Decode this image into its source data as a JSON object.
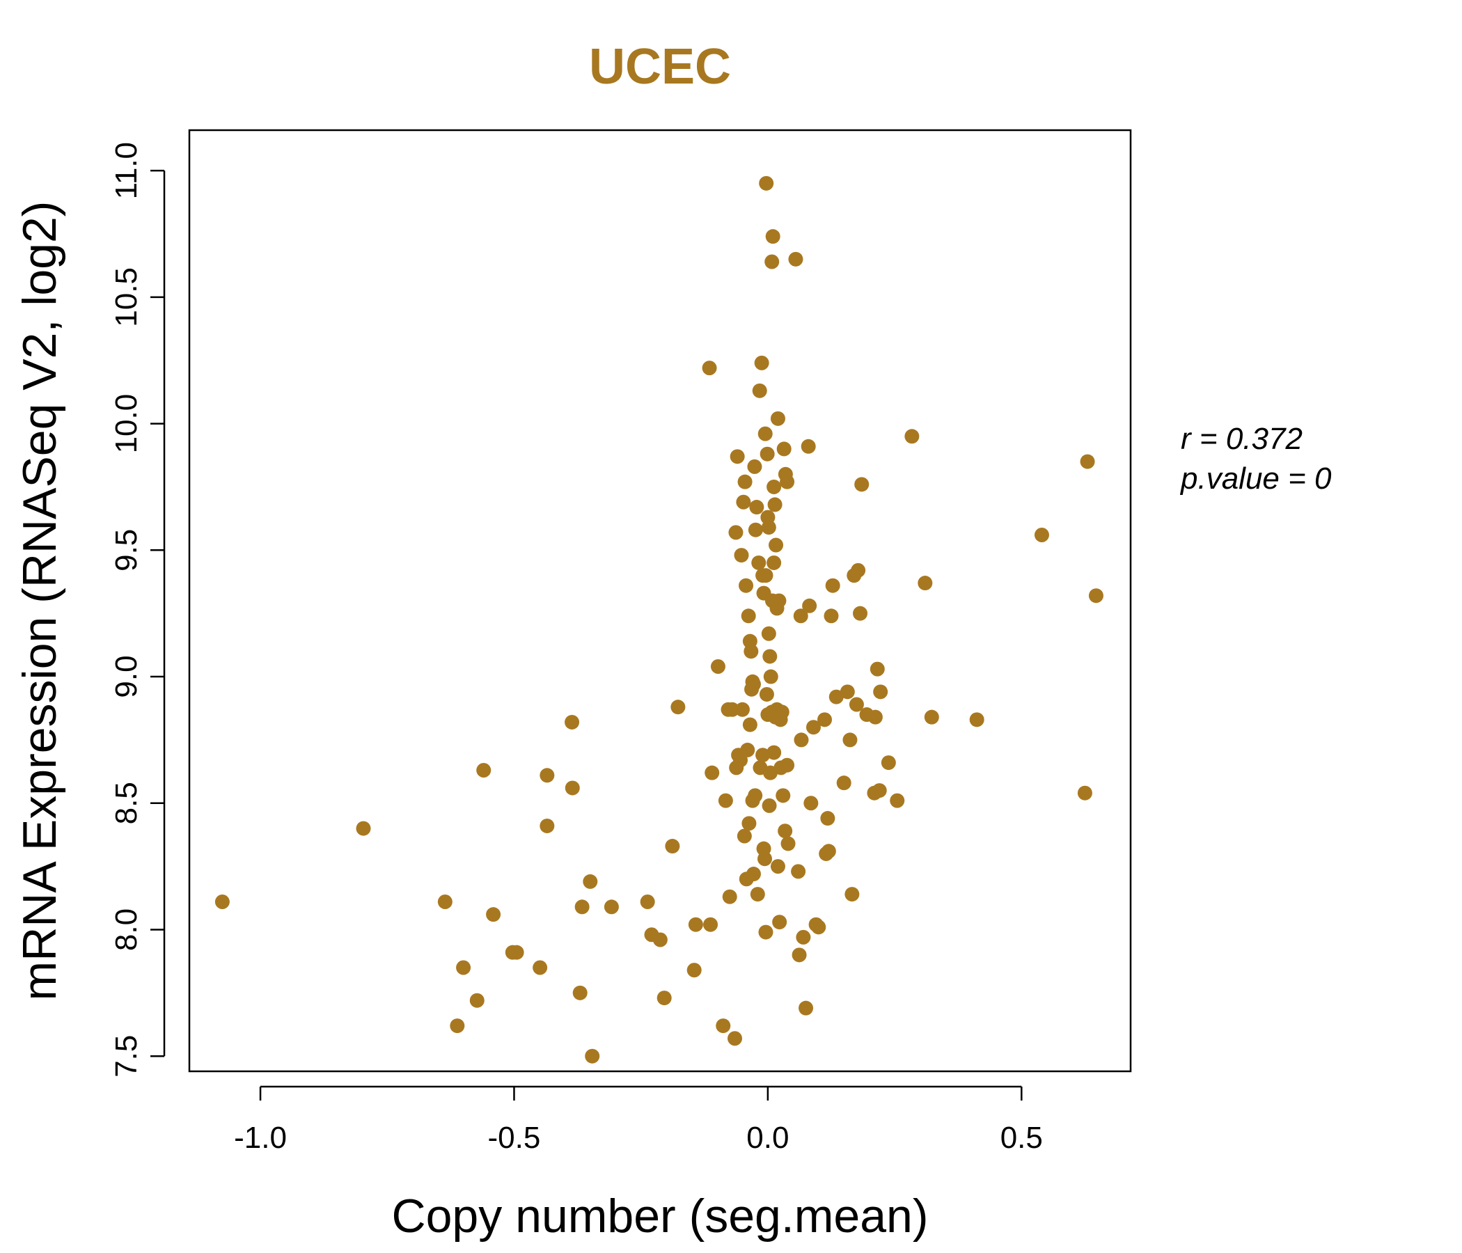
{
  "chart_data": {
    "type": "scatter",
    "title": "UCEC",
    "xlabel": "Copy number (seg.mean)",
    "ylabel": "mRNA Expression (RNASeq V2, log2)",
    "xlim": [
      -1.14,
      0.715
    ],
    "ylim": [
      7.44,
      11.16
    ],
    "x_ticks": [
      -1.0,
      -0.5,
      0.0,
      0.5
    ],
    "x_tick_labels": [
      "-1.0",
      "-0.5",
      "0.0",
      "0.5"
    ],
    "y_ticks": [
      7.5,
      8.0,
      8.5,
      9.0,
      9.5,
      10.0,
      10.5,
      11.0
    ],
    "y_tick_labels": [
      "7.5",
      "8.0",
      "8.5",
      "9.0",
      "9.5",
      "10.0",
      "10.5",
      "11.0"
    ],
    "grid": false,
    "color": "#A87820",
    "annotations": {
      "r_label": "r",
      "r_value": "0.372",
      "p_label": "p.value",
      "p_value": "0"
    },
    "points": [
      [
        -1.075,
        8.11
      ],
      [
        -0.797,
        8.4
      ],
      [
        -0.636,
        8.11
      ],
      [
        -0.612,
        7.62
      ],
      [
        -0.6,
        7.85
      ],
      [
        -0.573,
        7.72
      ],
      [
        -0.56,
        8.63
      ],
      [
        -0.541,
        8.06
      ],
      [
        -0.503,
        7.91
      ],
      [
        -0.495,
        7.91
      ],
      [
        -0.449,
        7.85
      ],
      [
        -0.435,
        8.41
      ],
      [
        -0.435,
        8.61
      ],
      [
        -0.386,
        8.82
      ],
      [
        -0.385,
        8.56
      ],
      [
        -0.37,
        7.75
      ],
      [
        -0.366,
        8.09
      ],
      [
        -0.35,
        8.19
      ],
      [
        -0.346,
        7.5
      ],
      [
        -0.308,
        8.09
      ],
      [
        -0.237,
        8.11
      ],
      [
        -0.229,
        7.98
      ],
      [
        -0.212,
        7.96
      ],
      [
        -0.204,
        7.73
      ],
      [
        -0.188,
        8.33
      ],
      [
        -0.177,
        8.88
      ],
      [
        -0.145,
        7.84
      ],
      [
        -0.142,
        8.02
      ],
      [
        -0.113,
        8.02
      ],
      [
        -0.11,
        8.62
      ],
      [
        -0.098,
        9.04
      ],
      [
        -0.088,
        7.62
      ],
      [
        -0.083,
        8.51
      ],
      [
        -0.075,
        8.13
      ],
      [
        -0.065,
        7.57
      ],
      [
        -0.115,
        10.22
      ],
      [
        -0.063,
        9.57
      ],
      [
        -0.06,
        9.87
      ],
      [
        -0.052,
        9.48
      ],
      [
        -0.048,
        9.69
      ],
      [
        -0.045,
        9.77
      ],
      [
        -0.043,
        9.36
      ],
      [
        -0.038,
        9.24
      ],
      [
        -0.035,
        9.14
      ],
      [
        -0.033,
        9.1
      ],
      [
        -0.03,
        8.98
      ],
      [
        -0.028,
        8.97
      ],
      [
        -0.026,
        9.83
      ],
      [
        -0.024,
        9.58
      ],
      [
        -0.022,
        9.67
      ],
      [
        -0.018,
        9.45
      ],
      [
        -0.016,
        10.13
      ],
      [
        -0.012,
        10.24
      ],
      [
        -0.01,
        9.4
      ],
      [
        -0.008,
        9.33
      ],
      [
        -0.005,
        9.96
      ],
      [
        -0.003,
        10.95
      ],
      [
        -0.001,
        9.88
      ],
      [
        0.0,
        9.63
      ],
      [
        0.002,
        9.17
      ],
      [
        0.004,
        9.08
      ],
      [
        0.006,
        9.0
      ],
      [
        0.008,
        10.64
      ],
      [
        0.01,
        10.74
      ],
      [
        0.012,
        9.75
      ],
      [
        0.014,
        9.68
      ],
      [
        0.016,
        9.52
      ],
      [
        0.018,
        9.27
      ],
      [
        0.02,
        10.02
      ],
      [
        0.022,
        9.3
      ],
      [
        0.025,
        8.83
      ],
      [
        0.028,
        8.86
      ],
      [
        0.032,
        9.9
      ],
      [
        0.035,
        9.8
      ],
      [
        0.038,
        9.77
      ],
      [
        0.055,
        10.65
      ],
      [
        -0.078,
        8.87
      ],
      [
        -0.07,
        8.87
      ],
      [
        -0.062,
        8.64
      ],
      [
        -0.058,
        8.69
      ],
      [
        -0.054,
        8.67
      ],
      [
        -0.05,
        8.87
      ],
      [
        -0.046,
        8.37
      ],
      [
        -0.042,
        8.2
      ],
      [
        -0.04,
        8.71
      ],
      [
        -0.037,
        8.42
      ],
      [
        -0.035,
        8.81
      ],
      [
        -0.032,
        8.95
      ],
      [
        -0.03,
        8.51
      ],
      [
        -0.028,
        8.22
      ],
      [
        -0.025,
        8.53
      ],
      [
        -0.02,
        8.14
      ],
      [
        -0.015,
        8.64
      ],
      [
        -0.01,
        8.69
      ],
      [
        -0.008,
        8.32
      ],
      [
        -0.006,
        8.28
      ],
      [
        -0.004,
        7.99
      ],
      [
        -0.002,
        8.93
      ],
      [
        0.0,
        8.85
      ],
      [
        0.003,
        8.49
      ],
      [
        0.005,
        8.62
      ],
      [
        0.008,
        8.86
      ],
      [
        0.012,
        8.7
      ],
      [
        0.015,
        8.84
      ],
      [
        0.018,
        8.87
      ],
      [
        0.02,
        8.25
      ],
      [
        0.023,
        8.03
      ],
      [
        0.026,
        8.64
      ],
      [
        0.03,
        8.53
      ],
      [
        0.034,
        8.39
      ],
      [
        0.038,
        8.65
      ],
      [
        0.04,
        8.34
      ],
      [
        0.06,
        8.23
      ],
      [
        0.062,
        7.9
      ],
      [
        0.066,
        8.75
      ],
      [
        0.07,
        7.97
      ],
      [
        0.075,
        7.69
      ],
      [
        0.08,
        9.91
      ],
      [
        0.082,
        9.28
      ],
      [
        0.085,
        8.5
      ],
      [
        0.09,
        8.8
      ],
      [
        0.095,
        8.02
      ],
      [
        0.1,
        8.01
      ],
      [
        0.112,
        8.83
      ],
      [
        0.115,
        8.3
      ],
      [
        0.118,
        8.44
      ],
      [
        0.12,
        8.31
      ],
      [
        0.125,
        9.24
      ],
      [
        0.128,
        9.36
      ],
      [
        0.135,
        8.92
      ],
      [
        0.15,
        8.58
      ],
      [
        0.157,
        8.94
      ],
      [
        0.162,
        8.75
      ],
      [
        0.166,
        8.14
      ],
      [
        0.17,
        9.4
      ],
      [
        0.175,
        8.89
      ],
      [
        0.178,
        9.42
      ],
      [
        0.182,
        9.25
      ],
      [
        0.185,
        9.76
      ],
      [
        0.195,
        8.85
      ],
      [
        0.21,
        8.54
      ],
      [
        0.212,
        8.84
      ],
      [
        0.216,
        9.03
      ],
      [
        0.22,
        8.55
      ],
      [
        0.222,
        8.94
      ],
      [
        0.238,
        8.66
      ],
      [
        0.255,
        8.51
      ],
      [
        0.284,
        9.95
      ],
      [
        0.31,
        9.37
      ],
      [
        0.323,
        8.84
      ],
      [
        0.412,
        8.83
      ],
      [
        0.54,
        9.56
      ],
      [
        0.625,
        8.54
      ],
      [
        0.63,
        9.85
      ],
      [
        0.647,
        9.32
      ],
      [
        0.065,
        9.24
      ],
      [
        0.012,
        9.45
      ],
      [
        -0.004,
        9.4
      ],
      [
        0.002,
        9.59
      ],
      [
        0.009,
        9.3
      ]
    ]
  }
}
